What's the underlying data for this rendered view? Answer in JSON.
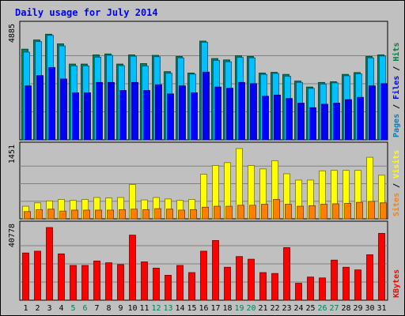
{
  "chart_data": {
    "type": "bar",
    "title": "Daily usage for July 2014",
    "categories": [
      "1",
      "2",
      "3",
      "4",
      "5",
      "6",
      "7",
      "8",
      "9",
      "10",
      "11",
      "12",
      "13",
      "14",
      "15",
      "16",
      "17",
      "18",
      "19",
      "20",
      "21",
      "22",
      "23",
      "24",
      "25",
      "26",
      "27",
      "28",
      "29",
      "30",
      "31"
    ],
    "weekend_days": [
      "5",
      "6",
      "12",
      "13",
      "19",
      "20",
      "26",
      "27"
    ],
    "panels": [
      {
        "name": "pages-files-hits",
        "ymax_label": "4885",
        "ymax": 4885,
        "legend": [
          {
            "label": "Pages",
            "color": "#0080c0"
          },
          {
            "label": "Files",
            "color": "#0000ff"
          },
          {
            "label": "Hits",
            "color": "#008040"
          }
        ],
        "series": [
          {
            "name": "Hits",
            "color": "#00805c",
            "values": [
              3950,
              4350,
              4600,
              4180,
              3300,
              3300,
              3700,
              3740,
              3300,
              3700,
              3320,
              3680,
              2970,
              3630,
              2910,
              4300,
              3540,
              3480,
              3660,
              3630,
              2910,
              2940,
              2850,
              2560,
              2300,
              2500,
              2530,
              2850,
              2930,
              3630,
              3700
            ]
          },
          {
            "name": "Files",
            "color": "#00c0ff",
            "values": [
              3820,
              4280,
              4550,
              4090,
              3220,
              3220,
              3600,
              3680,
              3230,
              3640,
              3210,
              3620,
              2900,
              3570,
              2860,
              4250,
              3460,
              3400,
              3590,
              3570,
              2850,
              2890,
              2770,
              2500,
              2240,
              2430,
              2480,
              2790,
              2870,
              3570,
              3650
            ]
          },
          {
            "name": "Pages",
            "color": "#0000ff",
            "values": [
              2350,
              2800,
              3150,
              2650,
              2050,
              2050,
              2500,
              2500,
              2150,
              2500,
              2150,
              2400,
              2000,
              2350,
              2050,
              2950,
              2300,
              2250,
              2500,
              2450,
              1900,
              1950,
              1800,
              1600,
              1400,
              1550,
              1600,
              1750,
              1850,
              2350,
              2450
            ]
          }
        ]
      },
      {
        "name": "sites-visits",
        "ymax_label": "1451",
        "ymax": 1451,
        "legend": [
          {
            "label": "Sites",
            "color": "#ff8000"
          },
          {
            "label": "Visits",
            "color": "#ffff00"
          }
        ],
        "series": [
          {
            "name": "Visits",
            "color": "#ffff00",
            "values": [
              260,
              330,
              370,
              400,
              380,
              400,
              440,
              430,
              440,
              710,
              390,
              440,
              410,
              380,
              400,
              920,
              1100,
              1160,
              1451,
              1100,
              1030,
              1200,
              930,
              800,
              800,
              990,
              1000,
              1000,
              1000,
              1270,
              900
            ]
          },
          {
            "name": "Sites",
            "color": "#ff8000",
            "values": [
              150,
              190,
              200,
              160,
              180,
              180,
              180,
              180,
              190,
              200,
              190,
              210,
              200,
              180,
              190,
              240,
              260,
              260,
              280,
              280,
              300,
              400,
              300,
              260,
              270,
              300,
              310,
              320,
              340,
              360,
              330
            ]
          }
        ]
      },
      {
        "name": "kbytes",
        "ymax_label": "40778",
        "ymax": 40778,
        "legend": [
          {
            "label": "KBytes",
            "color": "#ff0000"
          }
        ],
        "series": [
          {
            "name": "KBytes",
            "color": "#ff0000",
            "values": [
              26500,
              27500,
              40778,
              26000,
              19500,
              19500,
              22000,
              21000,
              20000,
              36500,
              21500,
              18000,
              14000,
              19500,
              15500,
              27500,
              33500,
              18500,
              24500,
              23000,
              15500,
              15000,
              29500,
              9500,
              13000,
              12500,
              22500,
              18500,
              17000,
              25500,
              37500
            ]
          }
        ]
      }
    ]
  }
}
